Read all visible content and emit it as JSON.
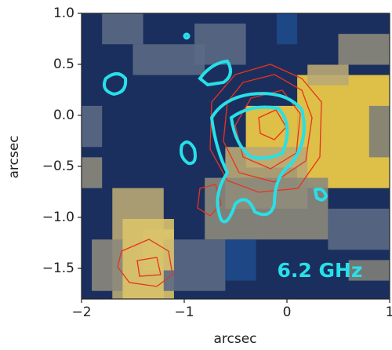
{
  "chart_data": {
    "type": "image",
    "xlabel": "arcsec",
    "ylabel": "arcsec",
    "annotation": "6.2 GHz",
    "xlim": [
      -2,
      1
    ],
    "ylim": [
      -1.8,
      1.0
    ],
    "xticks": [
      {
        "value": -2,
        "label": "−2"
      },
      {
        "value": -1,
        "label": "−1"
      },
      0,
      1
    ],
    "yticks": [
      {
        "value": -1.5,
        "label": "−1.5"
      },
      {
        "value": -1.0,
        "label": "−1.0"
      },
      {
        "value": -0.5,
        "label": "−0.5"
      },
      {
        "value": 0.0,
        "label": "0.0"
      },
      {
        "value": 0.5,
        "label": "0.5"
      },
      {
        "value": 1.0,
        "label": "1.0"
      }
    ]
  }
}
